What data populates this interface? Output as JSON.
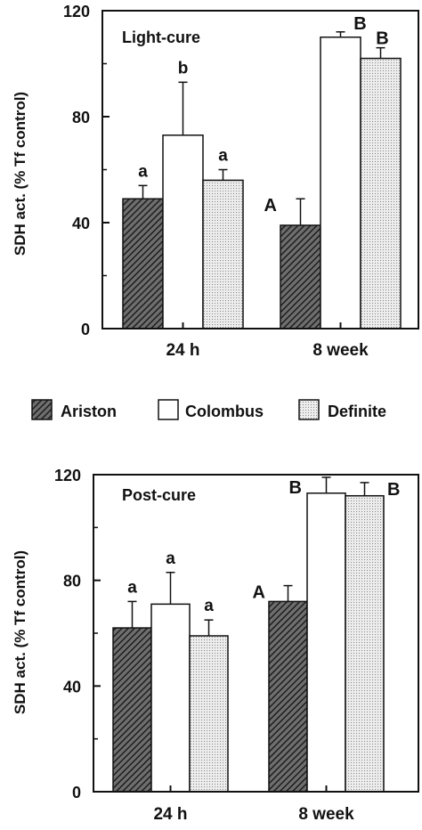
{
  "legend": {
    "items": [
      {
        "name": "Ariston",
        "pattern": "hatch"
      },
      {
        "name": "Colombus",
        "pattern": "plain"
      },
      {
        "name": "Definite",
        "pattern": "dots"
      }
    ]
  },
  "chart_data": [
    {
      "type": "bar",
      "title": "Light-cure",
      "ylabel": "SDH act. (% Tf control)",
      "xlabel": "",
      "ylim": [
        0,
        120
      ],
      "yticks": [
        "0",
        "40",
        "80",
        "120"
      ],
      "categories": [
        "24 h",
        "8 week"
      ],
      "series": [
        {
          "name": "Ariston",
          "values": [
            49,
            39
          ],
          "errors": [
            5,
            10
          ],
          "letters": [
            "a",
            "A"
          ]
        },
        {
          "name": "Colombus",
          "values": [
            73,
            110
          ],
          "errors": [
            20,
            2
          ],
          "letters": [
            "b",
            "B"
          ]
        },
        {
          "name": "Definite",
          "values": [
            56,
            102
          ],
          "errors": [
            4,
            4
          ],
          "letters": [
            "a",
            "B"
          ]
        }
      ],
      "grid": false
    },
    {
      "type": "bar",
      "title": "Post-cure",
      "ylabel": "SDH act. (% Tf control)",
      "xlabel": "",
      "ylim": [
        0,
        120
      ],
      "yticks": [
        "0",
        "40",
        "80",
        "120"
      ],
      "categories": [
        "24 h",
        "8 week"
      ],
      "series": [
        {
          "name": "Ariston",
          "values": [
            62,
            72
          ],
          "errors": [
            10,
            6
          ],
          "letters": [
            "a",
            "A"
          ]
        },
        {
          "name": "Colombus",
          "values": [
            71,
            113
          ],
          "errors": [
            12,
            6
          ],
          "letters": [
            "a",
            "B"
          ]
        },
        {
          "name": "Definite",
          "values": [
            59,
            112
          ],
          "errors": [
            6,
            5
          ],
          "letters": [
            "a",
            "B"
          ]
        }
      ],
      "grid": false
    }
  ]
}
